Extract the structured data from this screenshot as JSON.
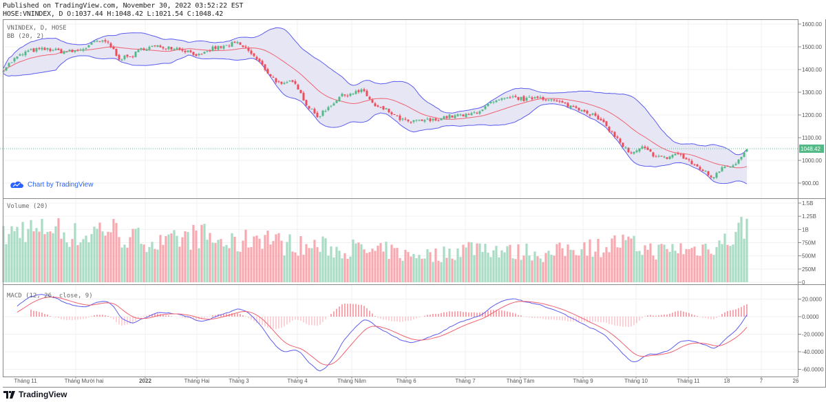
{
  "header": {
    "published": "Published on TradingView.com, November 30, 2022 03:52:22 EST",
    "ohlc": "HOSE:VNINDEX, D O:1037.44 H:1048.42 L:1021.54 C:1048.42"
  },
  "panes": {
    "main_title": "VNINDEX, D, HOSE",
    "bb_title": "BB (20, 2)",
    "volume_title": "Volume (20)",
    "macd_title": "MACD (12, 26, close, 9)"
  },
  "watermark": "Chart by TradingView",
  "brand": "TradingView",
  "colors": {
    "up": "#53b987",
    "down": "#eb4d5c",
    "bb_band": "#5b5bf0",
    "bb_basis": "#f2606e",
    "bb_fill": "#e3e3f3",
    "vol_up": "#a8dcc4",
    "vol_down": "#f6a9b0",
    "macd": "#5b5bf0",
    "signal": "#f2606e",
    "last_price": "#53b987"
  },
  "chart_data": {
    "type": "candlestick",
    "title": "VNINDEX, D, HOSE",
    "last_price": "1048.42",
    "price_axis": {
      "ticks": [
        "1600.00",
        "1500.00",
        "1400.00",
        "1300.00",
        "1200.00",
        "1100.00",
        "1000.00",
        "900.00"
      ],
      "ylim": [
        880,
        1620
      ]
    },
    "volume_axis": {
      "ticks": [
        "1.5B",
        "1.25B",
        "1B",
        "750M",
        "500M",
        "250M",
        "0"
      ],
      "ylim": [
        0,
        1500
      ]
    },
    "macd_axis": {
      "ticks": [
        "20.0000",
        "0.0000",
        "-20.0000",
        "-40.0000",
        "-60.0000"
      ],
      "ylim": [
        -70,
        30
      ]
    },
    "time_axis": [
      "Tháng 11",
      "Tháng Mười hai",
      "2022",
      "Tháng Hai",
      "Tháng 3",
      "Tháng 4",
      "Tháng Năm",
      "Tháng 6",
      "Tháng 7",
      "Tháng Tám",
      "Tháng 9",
      "Tháng 10",
      "Tháng 11",
      "18",
      "7",
      "26"
    ],
    "close_anchors": [
      1403,
      1448,
      1479,
      1488,
      1488,
      1479,
      1479,
      1494,
      1524,
      1518,
      1448,
      1458,
      1494,
      1500,
      1500,
      1494,
      1479,
      1458,
      1494,
      1500,
      1518,
      1488,
      1433,
      1373,
      1327,
      1358,
      1252,
      1191,
      1236,
      1282,
      1297,
      1306,
      1236,
      1221,
      1185,
      1167,
      1176,
      1176,
      1191,
      1197,
      1197,
      1221,
      1252,
      1267,
      1276,
      1267,
      1282,
      1267,
      1252,
      1236,
      1221,
      1191,
      1145,
      1085,
      1024,
      1055,
      1024,
      1009,
      1033,
      994,
      964,
      924,
      979,
      979,
      1048
    ],
    "volume_anchors_m": [
      850,
      950,
      1050,
      900,
      1100,
      950,
      900,
      850,
      1000,
      1050,
      900,
      800,
      850,
      750,
      700,
      800,
      850,
      900,
      800,
      750,
      700,
      800,
      900,
      850,
      700,
      750,
      650,
      700,
      650,
      600,
      650,
      600,
      550,
      600,
      550,
      500,
      550,
      500,
      550,
      600,
      650,
      700,
      650,
      600,
      550,
      600,
      550,
      500,
      600,
      650,
      700,
      650,
      700,
      750,
      700,
      650,
      600,
      600,
      650,
      600,
      650,
      700,
      750,
      900,
      1120
    ],
    "series": [
      {
        "name": "BB Upper"
      },
      {
        "name": "BB Basis"
      },
      {
        "name": "BB Lower"
      },
      {
        "name": "MACD"
      },
      {
        "name": "Signal"
      },
      {
        "name": "Histogram"
      }
    ]
  }
}
